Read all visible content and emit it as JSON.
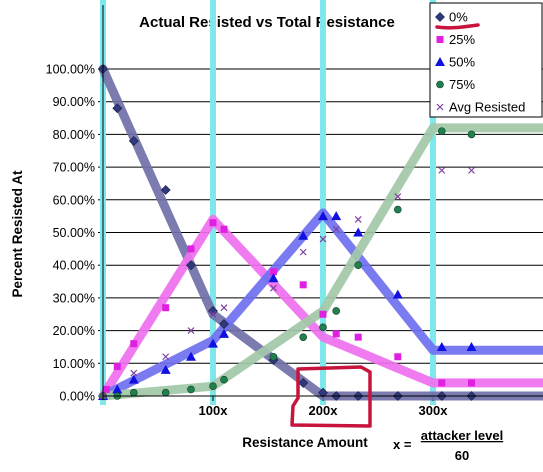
{
  "chart_data": {
    "type": "line",
    "title": "Actual Resisted vs Total Resistance",
    "xlabel": "Resistance Amount",
    "ylabel": "Percent Resisted At",
    "formula": {
      "lhs": "x =",
      "numerator": "attacker level",
      "denominator": "60"
    },
    "x_ticks": [
      "100x",
      "200x",
      "300x"
    ],
    "x_tick_values": [
      100,
      200,
      300
    ],
    "xlim": [
      0,
      400
    ],
    "ylim": [
      0,
      100
    ],
    "y_ticks": [
      "0.00%",
      "10.00%",
      "20.00%",
      "30.00%",
      "40.00%",
      "50.00%",
      "60.00%",
      "70.00%",
      "80.00%",
      "90.00%",
      "100.00%"
    ],
    "y_tick_values": [
      0,
      10,
      20,
      30,
      40,
      50,
      60,
      70,
      80,
      90,
      100
    ],
    "grid": "horizontal",
    "vertical_markers": [
      0,
      100,
      200,
      300
    ],
    "vertical_marker_color": "#7fe8ec",
    "legend_position": "top-right",
    "series": [
      {
        "name": "0%",
        "color": "#2e3a7e",
        "line_color": "#7070a8",
        "marker": "diamond",
        "line": [
          [
            0,
            100
          ],
          [
            100,
            25
          ],
          [
            200,
            0
          ],
          [
            400,
            0
          ]
        ],
        "points": [
          [
            0,
            100
          ],
          [
            13,
            88
          ],
          [
            28,
            78
          ],
          [
            57,
            63
          ],
          [
            80,
            40
          ],
          [
            100,
            26
          ],
          [
            110,
            22
          ],
          [
            155,
            11
          ],
          [
            182,
            4
          ],
          [
            200,
            1
          ],
          [
            212,
            0
          ],
          [
            232,
            0
          ],
          [
            268,
            0
          ],
          [
            308,
            0
          ],
          [
            335,
            0
          ]
        ]
      },
      {
        "name": "25%",
        "color": "#e020e0",
        "line_color": "#ef70ef",
        "marker": "square",
        "line": [
          [
            0,
            0
          ],
          [
            100,
            54
          ],
          [
            200,
            18
          ],
          [
            300,
            4
          ],
          [
            400,
            4
          ]
        ],
        "points": [
          [
            3,
            2
          ],
          [
            13,
            9
          ],
          [
            28,
            16
          ],
          [
            57,
            27
          ],
          [
            80,
            45
          ],
          [
            100,
            53
          ],
          [
            110,
            51
          ],
          [
            155,
            38
          ],
          [
            182,
            34
          ],
          [
            200,
            25
          ],
          [
            212,
            19
          ],
          [
            232,
            18
          ],
          [
            268,
            12
          ],
          [
            308,
            4
          ],
          [
            335,
            4
          ]
        ]
      },
      {
        "name": "50%",
        "color": "#1010e0",
        "line_color": "#7070f0",
        "marker": "triangle",
        "line": [
          [
            0,
            0
          ],
          [
            100,
            17
          ],
          [
            200,
            56
          ],
          [
            300,
            14
          ],
          [
            400,
            14
          ]
        ],
        "points": [
          [
            0,
            0
          ],
          [
            13,
            2
          ],
          [
            28,
            5
          ],
          [
            57,
            8
          ],
          [
            80,
            12
          ],
          [
            100,
            16
          ],
          [
            110,
            19
          ],
          [
            155,
            36
          ],
          [
            182,
            49
          ],
          [
            200,
            55
          ],
          [
            212,
            55
          ],
          [
            232,
            50
          ],
          [
            268,
            31
          ],
          [
            308,
            15
          ],
          [
            335,
            15
          ]
        ]
      },
      {
        "name": "75%",
        "color": "#208050",
        "line_color": "#a2c8a8",
        "marker": "circle",
        "line": [
          [
            0,
            0
          ],
          [
            100,
            3
          ],
          [
            200,
            26
          ],
          [
            300,
            82
          ],
          [
            400,
            82
          ]
        ],
        "points": [
          [
            0,
            0
          ],
          [
            13,
            0
          ],
          [
            28,
            1
          ],
          [
            57,
            1
          ],
          [
            80,
            2
          ],
          [
            100,
            3
          ],
          [
            110,
            5
          ],
          [
            155,
            12
          ],
          [
            182,
            18
          ],
          [
            200,
            21
          ],
          [
            212,
            26
          ],
          [
            232,
            40
          ],
          [
            268,
            57
          ],
          [
            308,
            81
          ],
          [
            335,
            80
          ]
        ]
      },
      {
        "name": "Avg Resisted",
        "color": "#8040a0",
        "marker": "x",
        "points": [
          [
            0,
            0
          ],
          [
            28,
            7
          ],
          [
            57,
            12
          ],
          [
            80,
            20
          ],
          [
            100,
            25
          ],
          [
            110,
            27
          ],
          [
            155,
            33
          ],
          [
            182,
            44
          ],
          [
            200,
            48
          ],
          [
            212,
            51
          ],
          [
            232,
            54
          ],
          [
            268,
            61
          ],
          [
            308,
            69
          ],
          [
            335,
            69
          ]
        ]
      }
    ]
  }
}
